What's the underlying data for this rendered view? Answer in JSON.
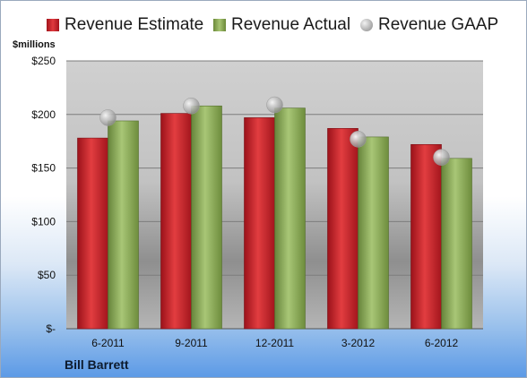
{
  "legend": {
    "estimate_label": "Revenue Estimate",
    "actual_label": "Revenue Actual",
    "gaap_label": "Revenue GAAP"
  },
  "unit_label": "$millions",
  "company": "Bill Barrett",
  "colors": {
    "estimate": "#d42a2f",
    "actual": "#94b55a",
    "gaap": "#b8b8b8"
  },
  "chart_data": {
    "type": "bar",
    "title": "",
    "xlabel": "",
    "ylabel": "$millions",
    "ylim": [
      0,
      250
    ],
    "y_ticks": [
      0,
      50,
      100,
      150,
      200,
      250
    ],
    "y_tick_labels": [
      "$-",
      "$50",
      "$100",
      "$150",
      "$200",
      "$250"
    ],
    "grid": true,
    "legend_position": "top",
    "categories": [
      "6-2011",
      "9-2011",
      "12-2011",
      "3-2012",
      "6-2012"
    ],
    "series": [
      {
        "name": "Revenue Estimate",
        "type": "bar",
        "values": [
          178,
          201,
          197,
          187,
          172
        ]
      },
      {
        "name": "Revenue Actual",
        "type": "bar",
        "values": [
          194,
          208,
          206,
          179,
          159
        ]
      },
      {
        "name": "Revenue GAAP",
        "type": "scatter",
        "values": [
          197,
          208,
          209,
          177,
          160
        ]
      }
    ]
  }
}
